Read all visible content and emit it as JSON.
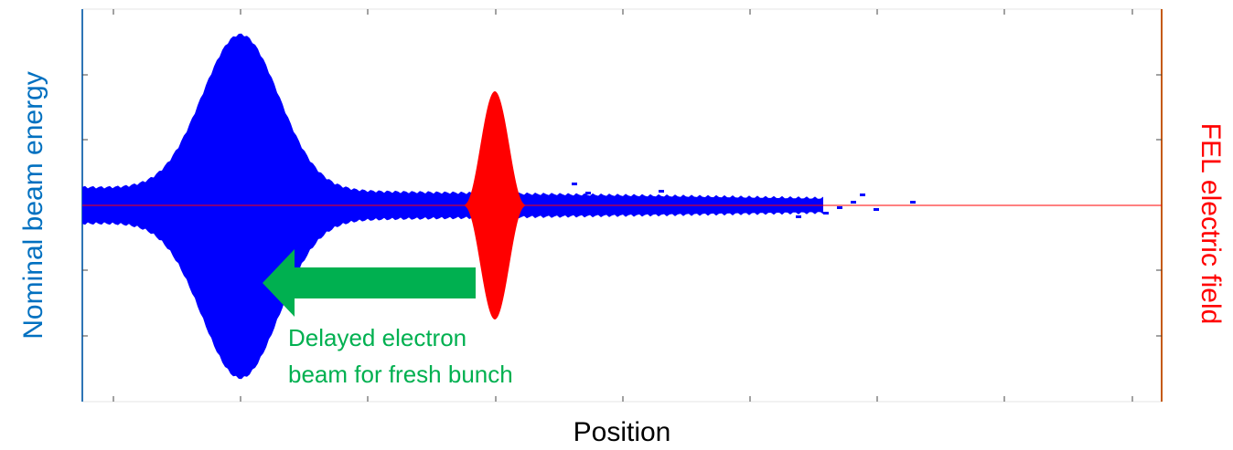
{
  "y_axis_label": "Nominal beam energy",
  "y2_axis_label": "FEL electric field",
  "x_axis_label": "Position",
  "annotation": {
    "lines": [
      "Delayed electron",
      "beam for fresh bunch"
    ]
  }
}
